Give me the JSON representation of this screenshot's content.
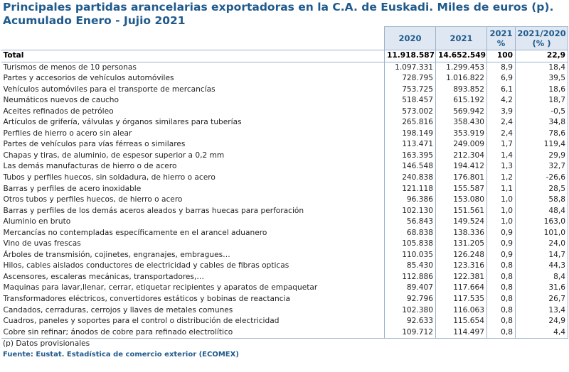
{
  "title_line1": "Principales partidas arancelarias exportadoras en la C.A. de Euskadi. Miles de euros (p).",
  "title_line2": "Acumulado Enero - Jujio 2021",
  "headers": [
    "2020",
    "2021",
    "2021 %",
    "2021/2020 (% )"
  ],
  "total": {
    "label": "Total",
    "v2020": "11.918.587",
    "v2021": "14.652.549",
    "pct": "100",
    "change": "22,9"
  },
  "rows": [
    {
      "label": "Turismos de menos de  10 personas",
      "v2020": "1.097.331",
      "v2021": "1.299.453",
      "pct": "8,9",
      "change": "18,4"
    },
    {
      "label": "Partes y accesorios de vehículos automóviles",
      "v2020": "728.795",
      "v2021": "1.016.822",
      "pct": "6,9",
      "change": "39,5"
    },
    {
      "label": "Vehículos automóviles para el transporte de mercancías",
      "v2020": "753.725",
      "v2021": "893.852",
      "pct": "6,1",
      "change": "18,6"
    },
    {
      "label": "Neumáticos nuevos de caucho",
      "v2020": "518.457",
      "v2021": "615.192",
      "pct": "4,2",
      "change": "18,7"
    },
    {
      "label": "Aceites refinados de petróleo",
      "v2020": "573.002",
      "v2021": "569.942",
      "pct": "3,9",
      "change": "-0,5"
    },
    {
      "label": "Artículos de grifería, válvulas y órganos similares para tuberías",
      "v2020": "265.816",
      "v2021": "358.430",
      "pct": "2,4",
      "change": "34,8"
    },
    {
      "label": "Perfiles de hierro o acero sin alear",
      "v2020": "198.149",
      "v2021": "353.919",
      "pct": "2,4",
      "change": "78,6"
    },
    {
      "label": "Partes de vehículos para vías férreas o similares",
      "v2020": "113.471",
      "v2021": "249.009",
      "pct": "1,7",
      "change": "119,4"
    },
    {
      "label": "Chapas y tiras, de aluminio, de espesor superior a 0,2 mm",
      "v2020": "163.395",
      "v2021": "212.304",
      "pct": "1,4",
      "change": "29,9"
    },
    {
      "label": "Las demás manufacturas de hierro o de acero",
      "v2020": "146.548",
      "v2021": "194.412",
      "pct": "1,3",
      "change": "32,7"
    },
    {
      "label": "Tubos y perfiles huecos, sin soldadura, de hierro o acero",
      "v2020": "240.838",
      "v2021": "176.801",
      "pct": "1,2",
      "change": "-26,6"
    },
    {
      "label": "Barras y perfiles de acero inoxidable",
      "v2020": "121.118",
      "v2021": "155.587",
      "pct": "1,1",
      "change": "28,5"
    },
    {
      "label": "Otros tubos y perfiles huecos, de hierro o acero",
      "v2020": "96.386",
      "v2021": "153.080",
      "pct": "1,0",
      "change": "58,8"
    },
    {
      "label": "Barras y perfiles de los demás aceros aleados y barras huecas para perforación",
      "v2020": "102.130",
      "v2021": "151.561",
      "pct": "1,0",
      "change": "48,4"
    },
    {
      "label": "Aluminio en bruto",
      "v2020": "56.843",
      "v2021": "149.524",
      "pct": "1,0",
      "change": "163,0"
    },
    {
      "label": "Mercancías no contempladas específicamente en el arancel aduanero",
      "v2020": "68.838",
      "v2021": "138.336",
      "pct": "0,9",
      "change": "101,0"
    },
    {
      "label": "Vino de uvas frescas",
      "v2020": "105.838",
      "v2021": "131.205",
      "pct": "0,9",
      "change": "24,0"
    },
    {
      "label": "Árboles de transmisión, cojinetes, engranajes, embragues…",
      "v2020": "110.035",
      "v2021": "126.248",
      "pct": "0,9",
      "change": "14,7"
    },
    {
      "label": "Hilos, cables aislados conductores de electricidad y cables de fibras opticas",
      "v2020": "85.430",
      "v2021": "123.316",
      "pct": "0,8",
      "change": "44,3"
    },
    {
      "label": "Ascensores, escaleras mecánicas, transportadores,…",
      "v2020": "112.886",
      "v2021": "122.381",
      "pct": "0,8",
      "change": "8,4"
    },
    {
      "label": "Maquinas para lavar,llenar, cerrar, etiquetar recipientes y aparatos de empaquetar",
      "v2020": "89.407",
      "v2021": "117.664",
      "pct": "0,8",
      "change": "31,6"
    },
    {
      "label": "Transformadores eléctricos, convertidores estáticos y bobinas de reactancia",
      "v2020": "92.796",
      "v2021": "117.535",
      "pct": "0,8",
      "change": "26,7"
    },
    {
      "label": "Candados, cerraduras, cerrojos y llaves de metales comunes",
      "v2020": "102.380",
      "v2021": "116.063",
      "pct": "0,8",
      "change": "13,4"
    },
    {
      "label": "Cuadros, paneles y soportes para el control o distribución de electricidad",
      "v2020": "92.633",
      "v2021": "115.654",
      "pct": "0,8",
      "change": "24,9"
    },
    {
      "label": "Cobre sin refinar; ánodos de cobre para refinado electrolítico",
      "v2020": "109.712",
      "v2021": "114.497",
      "pct": "0,8",
      "change": "4,4"
    }
  ],
  "note": "(p) Datos provisionales",
  "source": "Fuente: Eustat. Estadística de comercio exterior (ECOMEX)"
}
